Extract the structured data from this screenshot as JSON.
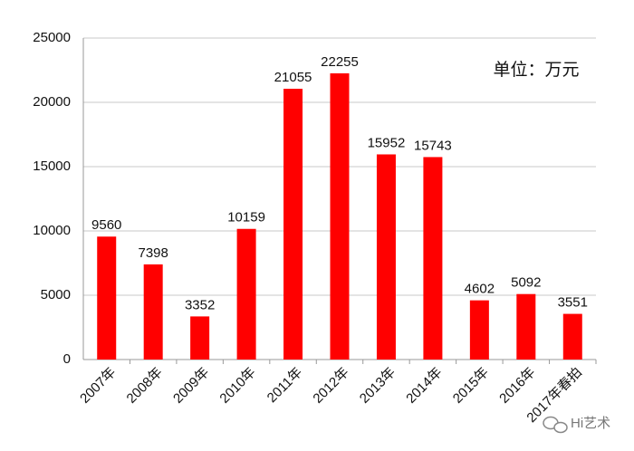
{
  "chart_data": {
    "type": "bar",
    "annotation": "单位：万元",
    "watermark": "Hi艺术",
    "categories": [
      "2007年",
      "2008年",
      "2009年",
      "2010年",
      "2011年",
      "2012年",
      "2013年",
      "2014年",
      "2015年",
      "2016年",
      "2017年春拍"
    ],
    "values": [
      9560,
      7398,
      3352,
      10159,
      21055,
      22255,
      15952,
      15743,
      4602,
      5092,
      3551
    ],
    "color": "#ff0000",
    "ylim": [
      0,
      25000
    ],
    "yticks": [
      0,
      5000,
      10000,
      15000,
      20000,
      25000
    ],
    "grid": true
  }
}
